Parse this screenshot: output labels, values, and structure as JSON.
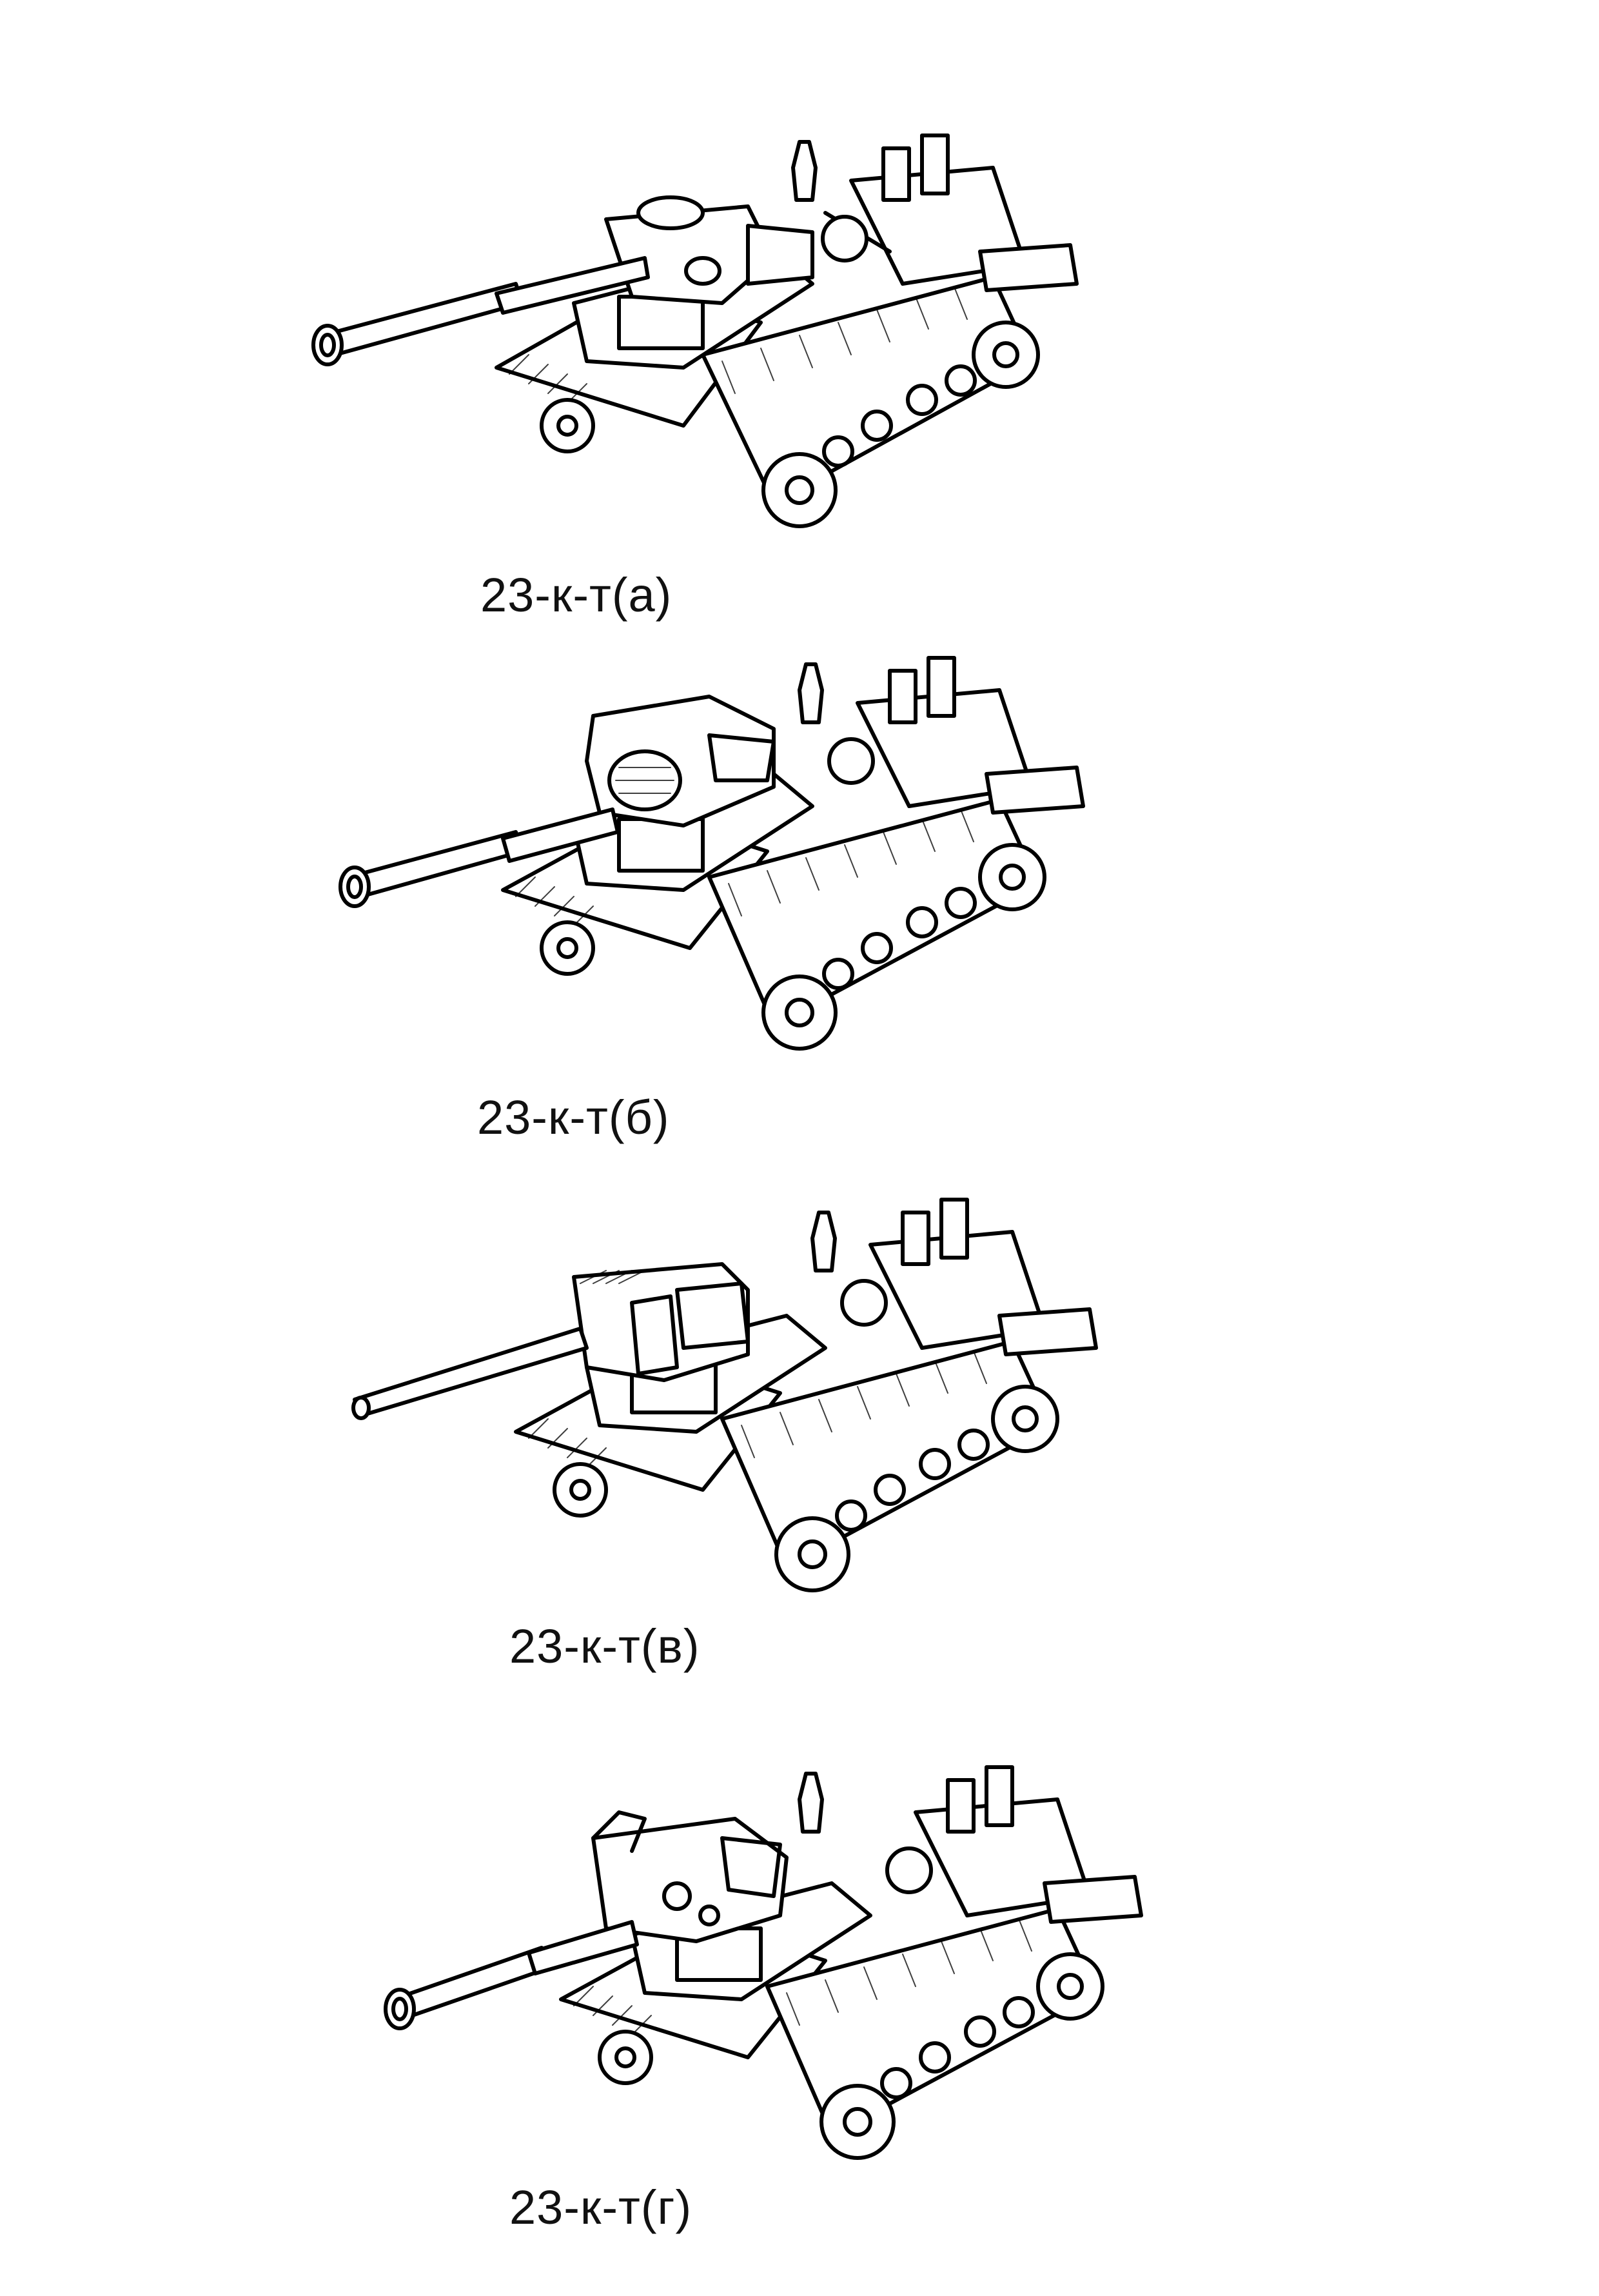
{
  "variants": [
    {
      "label": "23-к-т(а)"
    },
    {
      "label": "23-к-т(б)"
    },
    {
      "label": "23-к-т(в)"
    },
    {
      "label": "23-к-т(г)"
    }
  ],
  "colors": {
    "ink": "#000000",
    "paper": "#ffffff"
  },
  "icons": [
    "tank-sketch-a",
    "tank-sketch-b",
    "tank-sketch-c",
    "tank-sketch-d"
  ]
}
